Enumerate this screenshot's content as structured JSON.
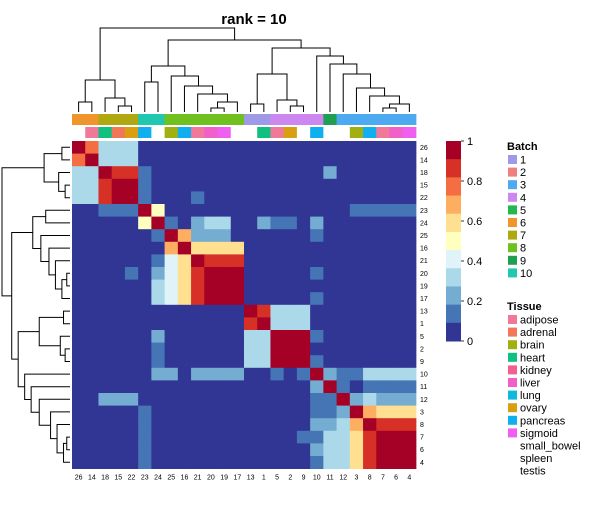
{
  "chart_data": {
    "type": "heatmap",
    "title": "rank = 10",
    "row_labels": [
      "26",
      "14",
      "18",
      "15",
      "22",
      "23",
      "24",
      "25",
      "16",
      "21",
      "20",
      "19",
      "17",
      "13",
      "1",
      "5",
      "2",
      "9",
      "10",
      "11",
      "12",
      "3",
      "8",
      "7",
      "6",
      "4"
    ],
    "col_labels": [
      "26",
      "14",
      "18",
      "15",
      "22",
      "23",
      "24",
      "25",
      "16",
      "21",
      "20",
      "19",
      "17",
      "13",
      "1",
      "5",
      "2",
      "9",
      "10",
      "11",
      "12",
      "3",
      "8",
      "7",
      "6",
      "4"
    ],
    "values": [
      [
        1,
        0.8,
        0.3,
        0.3,
        0.3,
        0,
        0,
        0,
        0,
        0,
        0,
        0,
        0,
        0,
        0,
        0,
        0,
        0,
        0,
        0,
        0,
        0,
        0,
        0,
        0,
        0
      ],
      [
        0.8,
        1,
        0.3,
        0.3,
        0.3,
        0,
        0,
        0,
        0,
        0,
        0,
        0,
        0,
        0,
        0,
        0,
        0,
        0,
        0,
        0,
        0,
        0,
        0,
        0,
        0,
        0
      ],
      [
        0.3,
        0.3,
        1,
        0.9,
        0.9,
        0.1,
        0,
        0,
        0,
        0,
        0,
        0,
        0,
        0,
        0,
        0,
        0,
        0,
        0,
        0.2,
        0,
        0,
        0,
        0,
        0,
        0
      ],
      [
        0.3,
        0.3,
        0.9,
        1,
        0.95,
        0.1,
        0,
        0,
        0,
        0,
        0,
        0,
        0,
        0,
        0,
        0,
        0,
        0,
        0,
        0,
        0,
        0,
        0,
        0,
        0,
        0
      ],
      [
        0.3,
        0.3,
        0.9,
        0.95,
        1,
        0.1,
        0,
        0,
        0,
        0.1,
        0,
        0,
        0,
        0,
        0,
        0,
        0,
        0,
        0,
        0,
        0,
        0,
        0,
        0,
        0,
        0
      ],
      [
        0,
        0,
        0.1,
        0.1,
        0.1,
        1,
        0.5,
        0,
        0,
        0,
        0,
        0,
        0,
        0,
        0,
        0,
        0,
        0,
        0,
        0,
        0,
        0.1,
        0.1,
        0.1,
        0.1,
        0.1
      ],
      [
        0,
        0,
        0,
        0,
        0,
        0.5,
        1,
        0.1,
        0,
        0.2,
        0.3,
        0.3,
        0,
        0,
        0.2,
        0.1,
        0.1,
        0,
        0.2,
        0,
        0,
        0,
        0,
        0,
        0,
        0
      ],
      [
        0,
        0,
        0,
        0,
        0,
        0,
        0.1,
        1,
        0.7,
        0.2,
        0.2,
        0.2,
        0,
        0,
        0,
        0,
        0,
        0,
        0.1,
        0,
        0,
        0,
        0,
        0,
        0,
        0
      ],
      [
        0,
        0,
        0,
        0,
        0,
        0,
        0,
        0.7,
        1,
        0.6,
        0.6,
        0.6,
        0.6,
        0,
        0,
        0,
        0,
        0,
        0,
        0,
        0,
        0,
        0,
        0,
        0,
        0
      ],
      [
        0,
        0,
        0,
        0,
        0,
        0,
        0.1,
        0.4,
        0.6,
        1,
        0.9,
        0.9,
        0.9,
        0,
        0,
        0,
        0,
        0,
        0,
        0,
        0,
        0,
        0,
        0,
        0,
        0
      ],
      [
        0,
        0,
        0,
        0,
        0.1,
        0,
        0.2,
        0.4,
        0.6,
        0.9,
        1,
        0.95,
        0.95,
        0,
        0,
        0,
        0,
        0,
        0.1,
        0,
        0,
        0,
        0,
        0,
        0,
        0
      ],
      [
        0,
        0,
        0,
        0,
        0,
        0,
        0.3,
        0.4,
        0.6,
        0.9,
        0.95,
        1,
        0.95,
        0,
        0,
        0,
        0,
        0,
        0,
        0,
        0,
        0,
        0,
        0,
        0,
        0
      ],
      [
        0,
        0,
        0,
        0,
        0,
        0,
        0.3,
        0.4,
        0.6,
        0.9,
        0.95,
        0.95,
        1,
        0,
        0,
        0,
        0,
        0,
        0.1,
        0,
        0,
        0,
        0,
        0,
        0,
        0
      ],
      [
        0,
        0,
        0,
        0,
        0,
        0,
        0,
        0,
        0,
        0,
        0,
        0,
        0,
        1,
        0.9,
        0.3,
        0.3,
        0.3,
        0,
        0,
        0,
        0,
        0,
        0,
        0,
        0
      ],
      [
        0,
        0,
        0,
        0,
        0,
        0,
        0,
        0,
        0,
        0,
        0,
        0,
        0,
        0.9,
        1,
        0.3,
        0.3,
        0.3,
        0,
        0,
        0,
        0,
        0,
        0,
        0,
        0
      ],
      [
        0,
        0,
        0,
        0,
        0,
        0,
        0.2,
        0,
        0,
        0,
        0,
        0,
        0,
        0.3,
        0.3,
        1,
        0.95,
        0.95,
        0.1,
        0,
        0,
        0,
        0,
        0,
        0,
        0
      ],
      [
        0,
        0,
        0,
        0,
        0,
        0,
        0.1,
        0,
        0,
        0,
        0,
        0,
        0,
        0.3,
        0.3,
        0.95,
        1,
        0.95,
        0,
        0,
        0,
        0,
        0,
        0,
        0,
        0
      ],
      [
        0,
        0,
        0,
        0,
        0,
        0,
        0.1,
        0,
        0,
        0,
        0,
        0,
        0,
        0.3,
        0.3,
        0.95,
        0.95,
        1,
        0.1,
        0,
        0,
        0,
        0,
        0,
        0,
        0
      ],
      [
        0,
        0,
        0,
        0,
        0,
        0,
        0.2,
        0.2,
        0,
        0.2,
        0.2,
        0.2,
        0.2,
        0,
        0,
        0.1,
        0,
        0.1,
        1,
        0.2,
        0.1,
        0.1,
        0.3,
        0.3,
        0.3,
        0.3
      ],
      [
        0,
        0,
        0,
        0,
        0,
        0,
        0,
        0,
        0,
        0,
        0,
        0,
        0,
        0,
        0,
        0,
        0,
        0,
        0.2,
        1,
        0.1,
        0,
        0.1,
        0.1,
        0.1,
        0.1
      ],
      [
        0,
        0,
        0.2,
        0.2,
        0.2,
        0,
        0,
        0,
        0,
        0,
        0,
        0,
        0,
        0,
        0,
        0,
        0,
        0,
        0.1,
        0.1,
        1,
        0.2,
        0.3,
        0.2,
        0.2,
        0.2
      ],
      [
        0,
        0,
        0,
        0,
        0,
        0.1,
        0,
        0,
        0,
        0,
        0,
        0,
        0,
        0,
        0,
        0,
        0,
        0,
        0.1,
        0.1,
        0.2,
        1,
        0.7,
        0.6,
        0.6,
        0.6
      ],
      [
        0,
        0,
        0,
        0,
        0,
        0.1,
        0,
        0,
        0,
        0,
        0,
        0,
        0,
        0,
        0,
        0,
        0,
        0,
        0.2,
        0.2,
        0.3,
        0.7,
        1,
        0.9,
        0.9,
        0.9
      ],
      [
        0,
        0,
        0,
        0,
        0,
        0.1,
        0,
        0,
        0,
        0,
        0,
        0,
        0,
        0,
        0,
        0,
        0,
        0.1,
        0.1,
        0.3,
        0.3,
        0.6,
        0.9,
        1,
        0.95,
        0.95
      ],
      [
        0,
        0,
        0,
        0,
        0,
        0.1,
        0,
        0,
        0,
        0,
        0,
        0,
        0,
        0,
        0,
        0,
        0,
        0,
        0.2,
        0.3,
        0.3,
        0.6,
        0.9,
        0.95,
        1,
        0.95
      ],
      [
        0,
        0,
        0,
        0,
        0,
        0.1,
        0,
        0,
        0,
        0,
        0,
        0,
        0,
        0,
        0,
        0,
        0,
        0,
        0.1,
        0.3,
        0.3,
        0.6,
        0.9,
        0.95,
        0.95,
        1
      ]
    ],
    "batch_annotation": [
      "6",
      "6",
      "7",
      "7",
      "7",
      "10",
      "10",
      "8",
      "8",
      "8",
      "8",
      "8",
      "8",
      "1",
      "1",
      "4",
      "4",
      "4",
      "4",
      "9",
      "3",
      "3",
      "3",
      "3",
      "3",
      "3"
    ],
    "tissue_annotation": [
      "",
      "adipose",
      "heart",
      "adrenal",
      "ovary",
      "pancreas",
      "",
      "brain",
      "pancreas",
      "adipose",
      "liver",
      "sigmoid",
      "",
      "",
      "heart",
      "adipose",
      "ovary",
      "",
      "pancreas",
      "",
      "",
      "brain",
      "pancreas",
      "adipose",
      "liver",
      "sigmoid"
    ],
    "colorbar": {
      "ticks": [
        1,
        0.8,
        0.6,
        0.4,
        0.2,
        0
      ],
      "min": 0,
      "max": 1
    },
    "color_scale": [
      "#313695",
      "#4575b4",
      "#74add1",
      "#abd9e9",
      "#e0f3f8",
      "#ffffbf",
      "#fee090",
      "#fdae61",
      "#f46d43",
      "#d73027",
      "#a50026"
    ]
  },
  "legend": {
    "batch_title": "Batch",
    "batch": [
      {
        "label": "1",
        "color": "#9e9ae8"
      },
      {
        "label": "2",
        "color": "#f08080"
      },
      {
        "label": "3",
        "color": "#4eaaf0"
      },
      {
        "label": "4",
        "color": "#cc88f0"
      },
      {
        "label": "5",
        "color": "#22b850"
      },
      {
        "label": "6",
        "color": "#f0952c"
      },
      {
        "label": "7",
        "color": "#b0a810"
      },
      {
        "label": "8",
        "color": "#70c020"
      },
      {
        "label": "9",
        "color": "#1fa050"
      },
      {
        "label": "10",
        "color": "#20c8b0"
      }
    ],
    "tissue_title": "Tissue",
    "tissue": [
      {
        "label": "adipose",
        "color": "#f07898"
      },
      {
        "label": "adrenal",
        "color": "#f07858"
      },
      {
        "label": "brain",
        "color": "#a0b010"
      },
      {
        "label": "heart",
        "color": "#10c080"
      },
      {
        "label": "kidney",
        "color": "#f06090"
      },
      {
        "label": "liver",
        "color": "#f060c8"
      },
      {
        "label": "lung",
        "color": "#10b8e0"
      },
      {
        "label": "ovary",
        "color": "#d8a010"
      },
      {
        "label": "pancreas",
        "color": "#10b0f0"
      },
      {
        "label": "sigmoid",
        "color": "#f060f0"
      },
      {
        "label": "small_bowel",
        "color": ""
      },
      {
        "label": "spleen",
        "color": ""
      },
      {
        "label": "testis",
        "color": ""
      }
    ]
  }
}
